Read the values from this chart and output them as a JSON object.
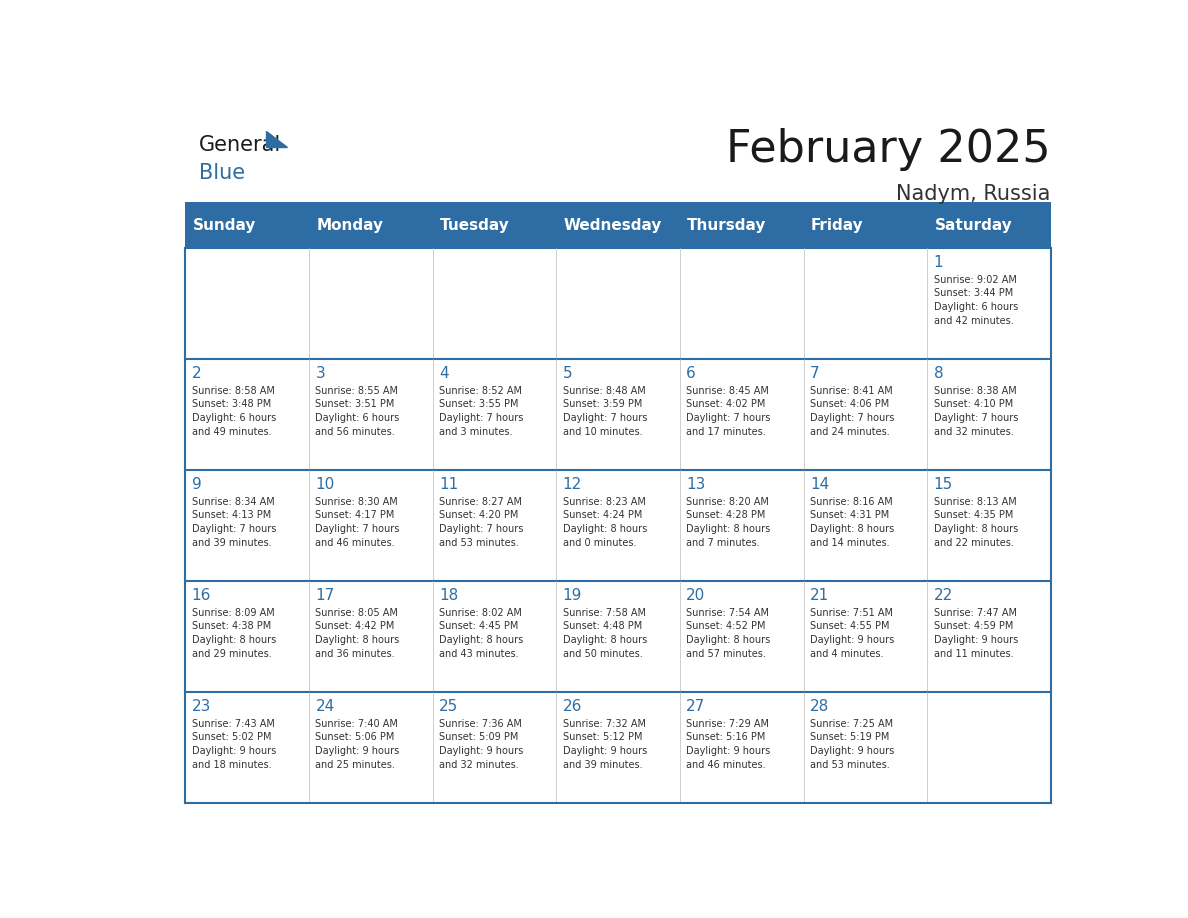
{
  "title": "February 2025",
  "subtitle": "Nadym, Russia",
  "header_bg": "#2E6DA4",
  "header_text_color": "#FFFFFF",
  "border_color": "#2E6DA4",
  "day_headers": [
    "Sunday",
    "Monday",
    "Tuesday",
    "Wednesday",
    "Thursday",
    "Friday",
    "Saturday"
  ],
  "title_color": "#1a1a1a",
  "subtitle_color": "#333333",
  "day_num_color": "#2E6DA4",
  "cell_text_color": "#333333",
  "blue_triangle_color": "#2E6DA4",
  "logo_general_color": "#1a1a1a",
  "logo_blue_color": "#2E6DA4",
  "weeks": [
    [
      {
        "day": null,
        "info": null
      },
      {
        "day": null,
        "info": null
      },
      {
        "day": null,
        "info": null
      },
      {
        "day": null,
        "info": null
      },
      {
        "day": null,
        "info": null
      },
      {
        "day": null,
        "info": null
      },
      {
        "day": 1,
        "info": "Sunrise: 9:02 AM\nSunset: 3:44 PM\nDaylight: 6 hours\nand 42 minutes."
      }
    ],
    [
      {
        "day": 2,
        "info": "Sunrise: 8:58 AM\nSunset: 3:48 PM\nDaylight: 6 hours\nand 49 minutes."
      },
      {
        "day": 3,
        "info": "Sunrise: 8:55 AM\nSunset: 3:51 PM\nDaylight: 6 hours\nand 56 minutes."
      },
      {
        "day": 4,
        "info": "Sunrise: 8:52 AM\nSunset: 3:55 PM\nDaylight: 7 hours\nand 3 minutes."
      },
      {
        "day": 5,
        "info": "Sunrise: 8:48 AM\nSunset: 3:59 PM\nDaylight: 7 hours\nand 10 minutes."
      },
      {
        "day": 6,
        "info": "Sunrise: 8:45 AM\nSunset: 4:02 PM\nDaylight: 7 hours\nand 17 minutes."
      },
      {
        "day": 7,
        "info": "Sunrise: 8:41 AM\nSunset: 4:06 PM\nDaylight: 7 hours\nand 24 minutes."
      },
      {
        "day": 8,
        "info": "Sunrise: 8:38 AM\nSunset: 4:10 PM\nDaylight: 7 hours\nand 32 minutes."
      }
    ],
    [
      {
        "day": 9,
        "info": "Sunrise: 8:34 AM\nSunset: 4:13 PM\nDaylight: 7 hours\nand 39 minutes."
      },
      {
        "day": 10,
        "info": "Sunrise: 8:30 AM\nSunset: 4:17 PM\nDaylight: 7 hours\nand 46 minutes."
      },
      {
        "day": 11,
        "info": "Sunrise: 8:27 AM\nSunset: 4:20 PM\nDaylight: 7 hours\nand 53 minutes."
      },
      {
        "day": 12,
        "info": "Sunrise: 8:23 AM\nSunset: 4:24 PM\nDaylight: 8 hours\nand 0 minutes."
      },
      {
        "day": 13,
        "info": "Sunrise: 8:20 AM\nSunset: 4:28 PM\nDaylight: 8 hours\nand 7 minutes."
      },
      {
        "day": 14,
        "info": "Sunrise: 8:16 AM\nSunset: 4:31 PM\nDaylight: 8 hours\nand 14 minutes."
      },
      {
        "day": 15,
        "info": "Sunrise: 8:13 AM\nSunset: 4:35 PM\nDaylight: 8 hours\nand 22 minutes."
      }
    ],
    [
      {
        "day": 16,
        "info": "Sunrise: 8:09 AM\nSunset: 4:38 PM\nDaylight: 8 hours\nand 29 minutes."
      },
      {
        "day": 17,
        "info": "Sunrise: 8:05 AM\nSunset: 4:42 PM\nDaylight: 8 hours\nand 36 minutes."
      },
      {
        "day": 18,
        "info": "Sunrise: 8:02 AM\nSunset: 4:45 PM\nDaylight: 8 hours\nand 43 minutes."
      },
      {
        "day": 19,
        "info": "Sunrise: 7:58 AM\nSunset: 4:48 PM\nDaylight: 8 hours\nand 50 minutes."
      },
      {
        "day": 20,
        "info": "Sunrise: 7:54 AM\nSunset: 4:52 PM\nDaylight: 8 hours\nand 57 minutes."
      },
      {
        "day": 21,
        "info": "Sunrise: 7:51 AM\nSunset: 4:55 PM\nDaylight: 9 hours\nand 4 minutes."
      },
      {
        "day": 22,
        "info": "Sunrise: 7:47 AM\nSunset: 4:59 PM\nDaylight: 9 hours\nand 11 minutes."
      }
    ],
    [
      {
        "day": 23,
        "info": "Sunrise: 7:43 AM\nSunset: 5:02 PM\nDaylight: 9 hours\nand 18 minutes."
      },
      {
        "day": 24,
        "info": "Sunrise: 7:40 AM\nSunset: 5:06 PM\nDaylight: 9 hours\nand 25 minutes."
      },
      {
        "day": 25,
        "info": "Sunrise: 7:36 AM\nSunset: 5:09 PM\nDaylight: 9 hours\nand 32 minutes."
      },
      {
        "day": 26,
        "info": "Sunrise: 7:32 AM\nSunset: 5:12 PM\nDaylight: 9 hours\nand 39 minutes."
      },
      {
        "day": 27,
        "info": "Sunrise: 7:29 AM\nSunset: 5:16 PM\nDaylight: 9 hours\nand 46 minutes."
      },
      {
        "day": 28,
        "info": "Sunrise: 7:25 AM\nSunset: 5:19 PM\nDaylight: 9 hours\nand 53 minutes."
      },
      {
        "day": null,
        "info": null
      }
    ]
  ]
}
